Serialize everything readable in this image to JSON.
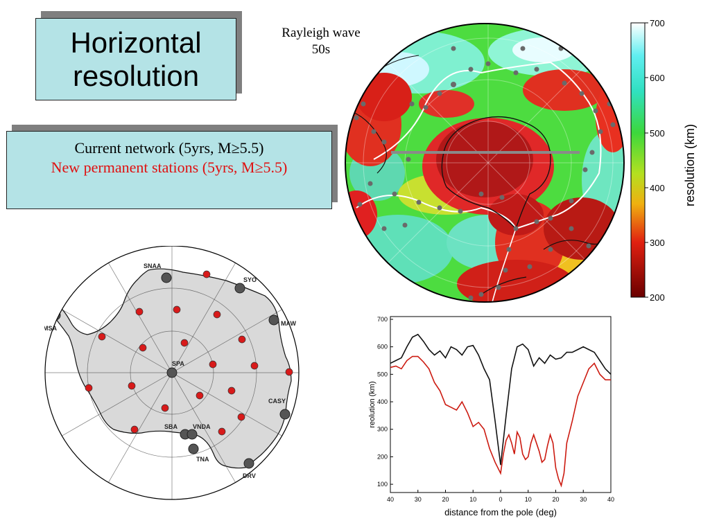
{
  "title": {
    "line1": "Horizontal",
    "line2": "resolution"
  },
  "network": {
    "current": "Current network (5yrs, M≥5.5)",
    "new": "New permanent stations (5yrs, M≥5.5)"
  },
  "wave_label": {
    "line1": "Rayleigh wave",
    "line2": "50s"
  },
  "colorbar": {
    "label": "resolution (km)",
    "ticks": [
      "700",
      "600",
      "500",
      "400",
      "300",
      "200"
    ]
  },
  "stations": {
    "SNAA": "SNAA",
    "SYO": "SYO",
    "MAW": "MAW",
    "PMSA": "PMSA",
    "SPA": "SPA",
    "CASY": "CASY",
    "SBA": "SBA",
    "VNDA": "VNDA",
    "TNA": "TNA",
    "DRV": "DRV"
  },
  "colors": {
    "box_fill": "#b4e3e6",
    "current_text": "#000000",
    "new_text": "#e01010",
    "existing_station": "#555555",
    "new_station": "#d81a1a",
    "continent": "#d9d9d9"
  },
  "chart_data": {
    "type": "line",
    "xlabel": "distance from the pole (deg)",
    "ylabel": "reolution (km)",
    "xticks": [
      "40",
      "30",
      "20",
      "10",
      "0",
      "10",
      "20",
      "30",
      "40"
    ],
    "yticks": [
      "100",
      "200",
      "300",
      "400",
      "500",
      "600",
      "700"
    ],
    "xlim": [
      -40,
      40
    ],
    "ylim": [
      70,
      710
    ],
    "series": [
      {
        "color": "#111111",
        "x": [
          -40,
          -38,
          -36,
          -34,
          -32,
          -30,
          -28,
          -26,
          -24,
          -22,
          -20,
          -18,
          -16,
          -14,
          -12,
          -10,
          -8,
          -6,
          -4,
          -2,
          0,
          2,
          4,
          6,
          8,
          10,
          12,
          14,
          16,
          18,
          20,
          22,
          24,
          26,
          28,
          30,
          32,
          34,
          36,
          38,
          40
        ],
        "y": [
          540,
          550,
          560,
          600,
          635,
          645,
          620,
          590,
          570,
          585,
          560,
          600,
          590,
          570,
          600,
          605,
          570,
          520,
          480,
          330,
          170,
          350,
          520,
          600,
          610,
          590,
          530,
          560,
          540,
          570,
          555,
          560,
          580,
          580,
          590,
          600,
          590,
          580,
          550,
          520,
          500
        ]
      },
      {
        "color": "#cc1a10",
        "x": [
          -40,
          -38,
          -36,
          -34,
          -32,
          -30,
          -28,
          -26,
          -24,
          -22,
          -20,
          -18,
          -16,
          -14,
          -12,
          -10,
          -8,
          -6,
          -4,
          -2,
          0,
          1,
          2,
          3,
          4,
          5,
          6,
          7,
          8,
          9,
          10,
          11,
          12,
          13,
          14,
          15,
          16,
          17,
          18,
          19,
          20,
          21,
          22,
          23,
          24,
          26,
          28,
          30,
          32,
          34,
          36,
          38,
          40
        ],
        "y": [
          525,
          530,
          520,
          550,
          565,
          565,
          545,
          520,
          470,
          440,
          390,
          380,
          370,
          400,
          360,
          310,
          325,
          300,
          230,
          180,
          140,
          210,
          260,
          280,
          250,
          210,
          290,
          270,
          210,
          190,
          200,
          250,
          280,
          250,
          220,
          180,
          190,
          240,
          280,
          250,
          160,
          120,
          95,
          140,
          250,
          330,
          420,
          470,
          520,
          540,
          500,
          480,
          480
        ]
      }
    ]
  }
}
